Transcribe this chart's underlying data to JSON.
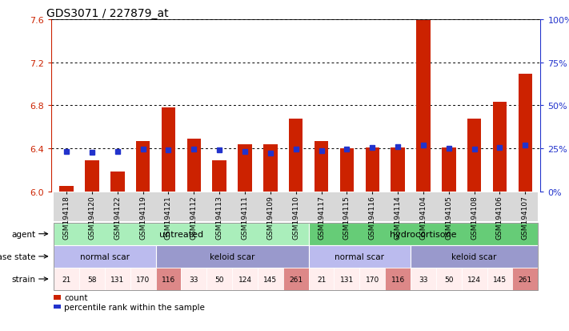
{
  "title": "GDS3071 / 227879_at",
  "samples": [
    "GSM194118",
    "GSM194120",
    "GSM194122",
    "GSM194119",
    "GSM194121",
    "GSM194112",
    "GSM194113",
    "GSM194111",
    "GSM194109",
    "GSM194110",
    "GSM194117",
    "GSM194115",
    "GSM194116",
    "GSM194114",
    "GSM194104",
    "GSM194105",
    "GSM194108",
    "GSM194106",
    "GSM194107"
  ],
  "bar_values": [
    6.05,
    6.29,
    6.19,
    6.47,
    6.78,
    6.49,
    6.29,
    6.44,
    6.44,
    6.68,
    6.47,
    6.4,
    6.41,
    6.41,
    7.59,
    6.41,
    6.68,
    6.83,
    7.09
  ],
  "percentile_values": [
    6.375,
    6.365,
    6.37,
    6.395,
    6.39,
    6.395,
    6.385,
    6.37,
    6.36,
    6.395,
    6.38,
    6.395,
    6.41,
    6.415,
    6.435,
    6.405,
    6.395,
    6.41,
    6.43
  ],
  "ylim": [
    6.0,
    7.6
  ],
  "yticks_left": [
    6.0,
    6.4,
    6.8,
    7.2,
    7.6
  ],
  "yticks_right": [
    0,
    25,
    50,
    75,
    100
  ],
  "bar_color": "#cc2200",
  "percentile_color": "#2233cc",
  "agent_groups": [
    {
      "label": "untreated",
      "start": 0,
      "end": 10,
      "color": "#aaeebb"
    },
    {
      "label": "hydrocortisone",
      "start": 10,
      "end": 19,
      "color": "#66cc77"
    }
  ],
  "disease_groups": [
    {
      "label": "normal scar",
      "start": 0,
      "end": 4,
      "color": "#bbbbee"
    },
    {
      "label": "keloid scar",
      "start": 4,
      "end": 10,
      "color": "#9999cc"
    },
    {
      "label": "normal scar",
      "start": 10,
      "end": 14,
      "color": "#bbbbee"
    },
    {
      "label": "keloid scar",
      "start": 14,
      "end": 19,
      "color": "#9999cc"
    }
  ],
  "strain_values": [
    "21",
    "58",
    "131",
    "170",
    "116",
    "33",
    "50",
    "124",
    "145",
    "261",
    "21",
    "131",
    "170",
    "116",
    "33",
    "50",
    "124",
    "145",
    "261"
  ],
  "strain_highlight": [
    false,
    false,
    false,
    false,
    true,
    false,
    false,
    false,
    false,
    true,
    false,
    false,
    false,
    true,
    false,
    false,
    false,
    false,
    true
  ],
  "strain_normal_color": "#ffeeee",
  "strain_keloid_color": "#dd8888",
  "row_labels": [
    "agent",
    "disease state",
    "strain"
  ],
  "legend_items": [
    {
      "color": "#cc2200",
      "label": "count"
    },
    {
      "color": "#2233cc",
      "label": "percentile rank within the sample"
    }
  ]
}
